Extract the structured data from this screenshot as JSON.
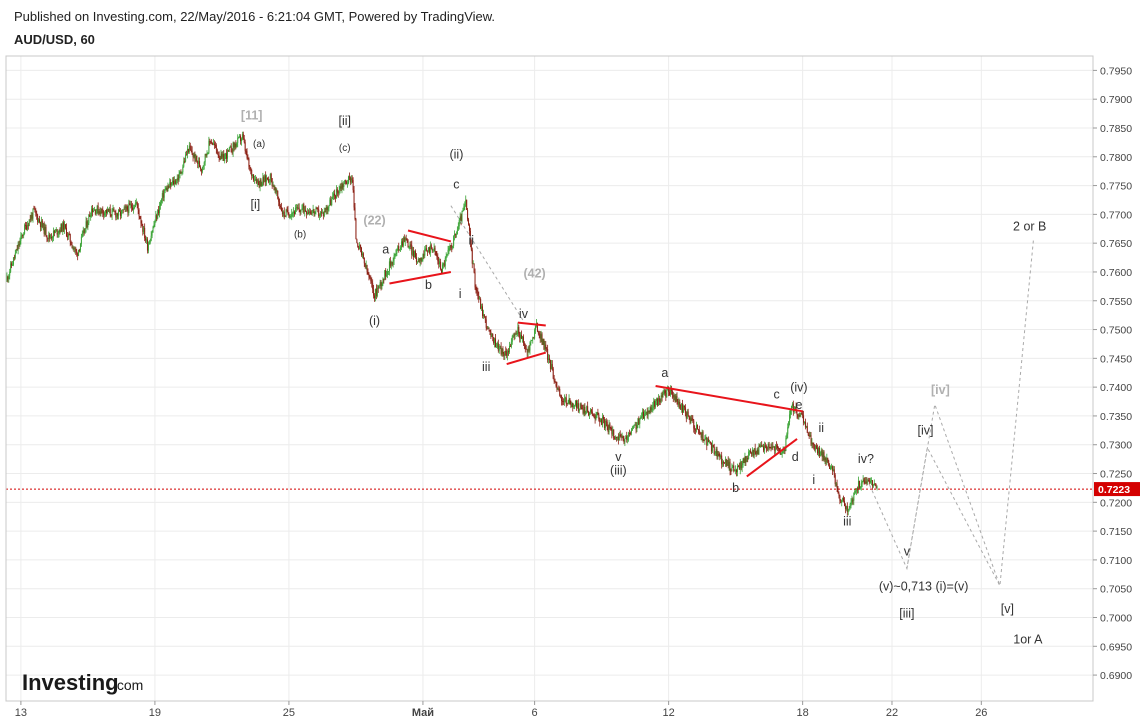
{
  "header": {
    "published": "Published on Investing.com, 22/May/2016 - 6:21:04 GMT, Powered by TradingView.",
    "symbol": "AUD/USD, 60"
  },
  "logo": {
    "brand": "Investing",
    "suffix": ".com"
  },
  "colors": {
    "up": "#3aa335",
    "down": "#8b1e12",
    "trendline": "#e8141b",
    "projection": "#a9a9a9",
    "price_line": "#d40000",
    "grid": "#ececec"
  },
  "chart_data": {
    "type": "candlestick",
    "title": "AUD/USD, 60",
    "ylim": [
      0.6855,
      0.7975
    ],
    "xlim": [
      "2016-04-12 08:00",
      "2016-05-31 00:00"
    ],
    "x_tick_labels": [
      "13",
      "19",
      "25",
      "Май",
      "6",
      "12",
      "18",
      "22",
      "26"
    ],
    "x_tick_dates": [
      "2016-04-13",
      "2016-04-19",
      "2016-04-25",
      "2016-05-01",
      "2016-05-06",
      "2016-05-12",
      "2016-05-18",
      "2016-05-22",
      "2016-05-26"
    ],
    "y_ticks": [
      "0.7950",
      "0.7900",
      "0.7850",
      "0.7800",
      "0.7750",
      "0.7700",
      "0.7650",
      "0.7600",
      "0.7550",
      "0.7500",
      "0.7450",
      "0.7400",
      "0.7350",
      "0.7300",
      "0.7250",
      "0.7200",
      "0.7150",
      "0.7100",
      "0.7050",
      "0.7000",
      "0.6950",
      "0.6900"
    ],
    "last_price": "0.7223",
    "price_path": [
      [
        "2016-04-12 08:00",
        0.7585
      ],
      [
        "2016-04-13 04:00",
        0.7675
      ],
      [
        "2016-04-13 14:00",
        0.7705
      ],
      [
        "2016-04-14 06:00",
        0.766
      ],
      [
        "2016-04-14 22:00",
        0.768
      ],
      [
        "2016-04-15 12:00",
        0.763
      ],
      [
        "2016-04-16 04:00",
        0.771
      ],
      [
        "2016-04-17 10:00",
        0.77
      ],
      [
        "2016-04-18 04:00",
        0.772
      ],
      [
        "2016-04-18 16:00",
        0.7645
      ],
      [
        "2016-04-19 10:00",
        0.774
      ],
      [
        "2016-04-20 02:00",
        0.7765
      ],
      [
        "2016-04-20 12:00",
        0.7815
      ],
      [
        "2016-04-21 02:00",
        0.778
      ],
      [
        "2016-04-21 12:00",
        0.783
      ],
      [
        "2016-04-22 00:00",
        0.7795
      ],
      [
        "2016-04-22 22:00",
        0.7835
      ],
      [
        "2016-04-23 06:00",
        0.7775
      ],
      [
        "2016-04-23 16:00",
        0.7755
      ],
      [
        "2016-04-24 04:00",
        0.7765
      ],
      [
        "2016-04-24 18:00",
        0.77
      ],
      [
        "2016-04-25 16:00",
        0.771
      ],
      [
        "2016-04-26 12:00",
        0.77
      ],
      [
        "2016-04-27 08:00",
        0.775
      ],
      [
        "2016-04-27 20:00",
        0.7765
      ],
      [
        "2016-04-28 00:00",
        0.766
      ],
      [
        "2016-04-28 20:00",
        0.756
      ],
      [
        "2016-04-29 10:00",
        0.7605
      ],
      [
        "2016-04-30 04:00",
        0.766
      ],
      [
        "2016-04-30 18:00",
        0.762
      ],
      [
        "2016-05-01 10:00",
        0.7645
      ],
      [
        "2016-05-01 20:00",
        0.7605
      ],
      [
        "2016-05-02 10:00",
        0.766
      ],
      [
        "2016-05-02 22:00",
        0.772
      ],
      [
        "2016-05-03 08:00",
        0.758
      ],
      [
        "2016-05-03 16:00",
        0.753
      ],
      [
        "2016-05-04 00:00",
        0.749
      ],
      [
        "2016-05-04 16:00",
        0.7455
      ],
      [
        "2016-05-05 06:00",
        0.75
      ],
      [
        "2016-05-05 16:00",
        0.746
      ],
      [
        "2016-05-06 02:00",
        0.7505
      ],
      [
        "2016-05-06 12:00",
        0.7465
      ],
      [
        "2016-05-07 04:00",
        0.738
      ],
      [
        "2016-05-08 00:00",
        0.7365
      ],
      [
        "2016-05-08 20:00",
        0.735
      ],
      [
        "2016-05-09 12:00",
        0.732
      ],
      [
        "2016-05-10 00:00",
        0.7305
      ],
      [
        "2016-05-10 20:00",
        0.735
      ],
      [
        "2016-05-11 12:00",
        0.7375
      ],
      [
        "2016-05-12 00:00",
        0.7395
      ],
      [
        "2016-05-12 16:00",
        0.736
      ],
      [
        "2016-05-13 12:00",
        0.7315
      ],
      [
        "2016-05-14 08:00",
        0.7275
      ],
      [
        "2016-05-15 00:00",
        0.7255
      ],
      [
        "2016-05-15 16:00",
        0.7285
      ],
      [
        "2016-05-16 12:00",
        0.73
      ],
      [
        "2016-05-17 04:00",
        0.7285
      ],
      [
        "2016-05-17 12:00",
        0.7365
      ],
      [
        "2016-05-18 00:00",
        0.7345
      ],
      [
        "2016-05-18 12:00",
        0.7295
      ],
      [
        "2016-05-19 00:00",
        0.728
      ],
      [
        "2016-05-19 08:00",
        0.7255
      ],
      [
        "2016-05-19 16:00",
        0.721
      ],
      [
        "2016-05-20 00:00",
        0.7185
      ],
      [
        "2016-05-20 12:00",
        0.723
      ],
      [
        "2016-05-21 00:00",
        0.724
      ],
      [
        "2016-05-21 08:00",
        0.7223
      ]
    ],
    "trendlines": [
      [
        [
          "2016-04-29 12:00",
          0.758
        ],
        [
          "2016-05-02 06:00",
          0.76
        ]
      ],
      [
        [
          "2016-04-30 08:00",
          0.7672
        ],
        [
          "2016-05-02 06:00",
          0.7653
        ]
      ],
      [
        [
          "2016-05-04 18:00",
          0.744
        ],
        [
          "2016-05-06 12:00",
          0.746
        ]
      ],
      [
        [
          "2016-05-05 06:00",
          0.7512
        ],
        [
          "2016-05-06 12:00",
          0.7507
        ]
      ],
      [
        [
          "2016-05-11 10:00",
          0.7402
        ],
        [
          "2016-05-18 00:00",
          0.7358
        ]
      ],
      [
        [
          "2016-05-15 12:00",
          0.7245
        ],
        [
          "2016-05-17 18:00",
          0.731
        ]
      ]
    ],
    "projection_paths": [
      [
        [
          "2016-05-21 00:00",
          0.723
        ],
        [
          "2016-05-22 16:00",
          0.7085
        ],
        [
          "2016-05-23 14:00",
          0.7295
        ],
        [
          "2016-05-26 20:00",
          0.7055
        ],
        [
          "2016-05-28 08:00",
          0.7655
        ]
      ],
      [
        [
          "2016-05-22 16:00",
          0.7085
        ],
        [
          "2016-05-23 22:00",
          0.737
        ],
        [
          "2016-05-26 20:00",
          0.7055
        ]
      ],
      [
        [
          "2016-05-02 06:00",
          0.7715
        ],
        [
          "2016-05-05 12:00",
          0.7515
        ]
      ]
    ],
    "annotations": [
      {
        "text": "[11]",
        "t": "2016-04-23 08:00",
        "p": 0.7865,
        "tone": "light"
      },
      {
        "text": "(a)",
        "t": "2016-04-23 16:00",
        "p": 0.7817,
        "tone": "dark"
      },
      {
        "text": "[ii]",
        "t": "2016-04-27 12:00",
        "p": 0.7855,
        "tone": "dark"
      },
      {
        "text": "(c)",
        "t": "2016-04-27 12:00",
        "p": 0.781,
        "tone": "dark"
      },
      {
        "text": "[i]",
        "t": "2016-04-23 12:00",
        "p": 0.771,
        "tone": "dark"
      },
      {
        "text": "(b)",
        "t": "2016-04-25 12:00",
        "p": 0.766,
        "tone": "dark"
      },
      {
        "text": "(22)",
        "t": "2016-04-28 20:00",
        "p": 0.7682,
        "tone": "light"
      },
      {
        "text": "a",
        "t": "2016-04-29 08:00",
        "p": 0.7632,
        "tone": "dark"
      },
      {
        "text": "b",
        "t": "2016-05-01 06:00",
        "p": 0.757,
        "tone": "dark"
      },
      {
        "text": "(i)",
        "t": "2016-04-28 20:00",
        "p": 0.7508,
        "tone": "dark"
      },
      {
        "text": "(ii)",
        "t": "2016-05-02 12:00",
        "p": 0.7797,
        "tone": "dark"
      },
      {
        "text": "c",
        "t": "2016-05-02 12:00",
        "p": 0.7745,
        "tone": "dark"
      },
      {
        "text": "ii",
        "t": "2016-05-03 04:00",
        "p": 0.7648,
        "tone": "dark"
      },
      {
        "text": "(42)",
        "t": "2016-05-06 00:00",
        "p": 0.759,
        "tone": "light"
      },
      {
        "text": "i",
        "t": "2016-05-02 16:00",
        "p": 0.7555,
        "tone": "dark"
      },
      {
        "text": "iv",
        "t": "2016-05-05 12:00",
        "p": 0.752,
        "tone": "dark"
      },
      {
        "text": "iii",
        "t": "2016-05-03 20:00",
        "p": 0.7428,
        "tone": "dark"
      },
      {
        "text": "a",
        "t": "2016-05-11 20:00",
        "p": 0.7418,
        "tone": "dark"
      },
      {
        "text": "v",
        "t": "2016-05-09 18:00",
        "p": 0.7272,
        "tone": "dark"
      },
      {
        "text": "(iii)",
        "t": "2016-05-09 18:00",
        "p": 0.7248,
        "tone": "dark"
      },
      {
        "text": "c",
        "t": "2016-05-16 20:00",
        "p": 0.738,
        "tone": "dark"
      },
      {
        "text": "(iv)",
        "t": "2016-05-17 20:00",
        "p": 0.7392,
        "tone": "dark"
      },
      {
        "text": "e",
        "t": "2016-05-17 20:00",
        "p": 0.7362,
        "tone": "dark"
      },
      {
        "text": "ii",
        "t": "2016-05-18 20:00",
        "p": 0.7322,
        "tone": "dark"
      },
      {
        "text": "d",
        "t": "2016-05-17 16:00",
        "p": 0.7272,
        "tone": "dark"
      },
      {
        "text": "b",
        "t": "2016-05-15 00:00",
        "p": 0.7218,
        "tone": "dark"
      },
      {
        "text": "i",
        "t": "2016-05-18 12:00",
        "p": 0.7232,
        "tone": "dark"
      },
      {
        "text": "iv?",
        "t": "2016-05-20 20:00",
        "p": 0.7268,
        "tone": "dark"
      },
      {
        "text": "iii",
        "t": "2016-05-20 00:00",
        "p": 0.716,
        "tone": "dark"
      },
      {
        "text": "2 or B",
        "t": "2016-05-28 04:00",
        "p": 0.7672,
        "tone": "dark"
      },
      {
        "text": "[iv]",
        "t": "2016-05-24 04:00",
        "p": 0.7388,
        "tone": "light"
      },
      {
        "text": "[iv]",
        "t": "2016-05-23 12:00",
        "p": 0.7318,
        "tone": "dark"
      },
      {
        "text": "v",
        "t": "2016-05-22 16:00",
        "p": 0.7108,
        "tone": "dark"
      },
      {
        "text": "(v)~0,713 (i)=(v)",
        "t": "2016-05-23 10:00",
        "p": 0.7047,
        "tone": "dark"
      },
      {
        "text": "[iii]",
        "t": "2016-05-22 16:00",
        "p": 0.7,
        "tone": "dark"
      },
      {
        "text": "[v]",
        "t": "2016-05-27 04:00",
        "p": 0.7008,
        "tone": "dark"
      },
      {
        "text": "1or A",
        "t": "2016-05-28 02:00",
        "p": 0.6955,
        "tone": "dark"
      }
    ]
  }
}
